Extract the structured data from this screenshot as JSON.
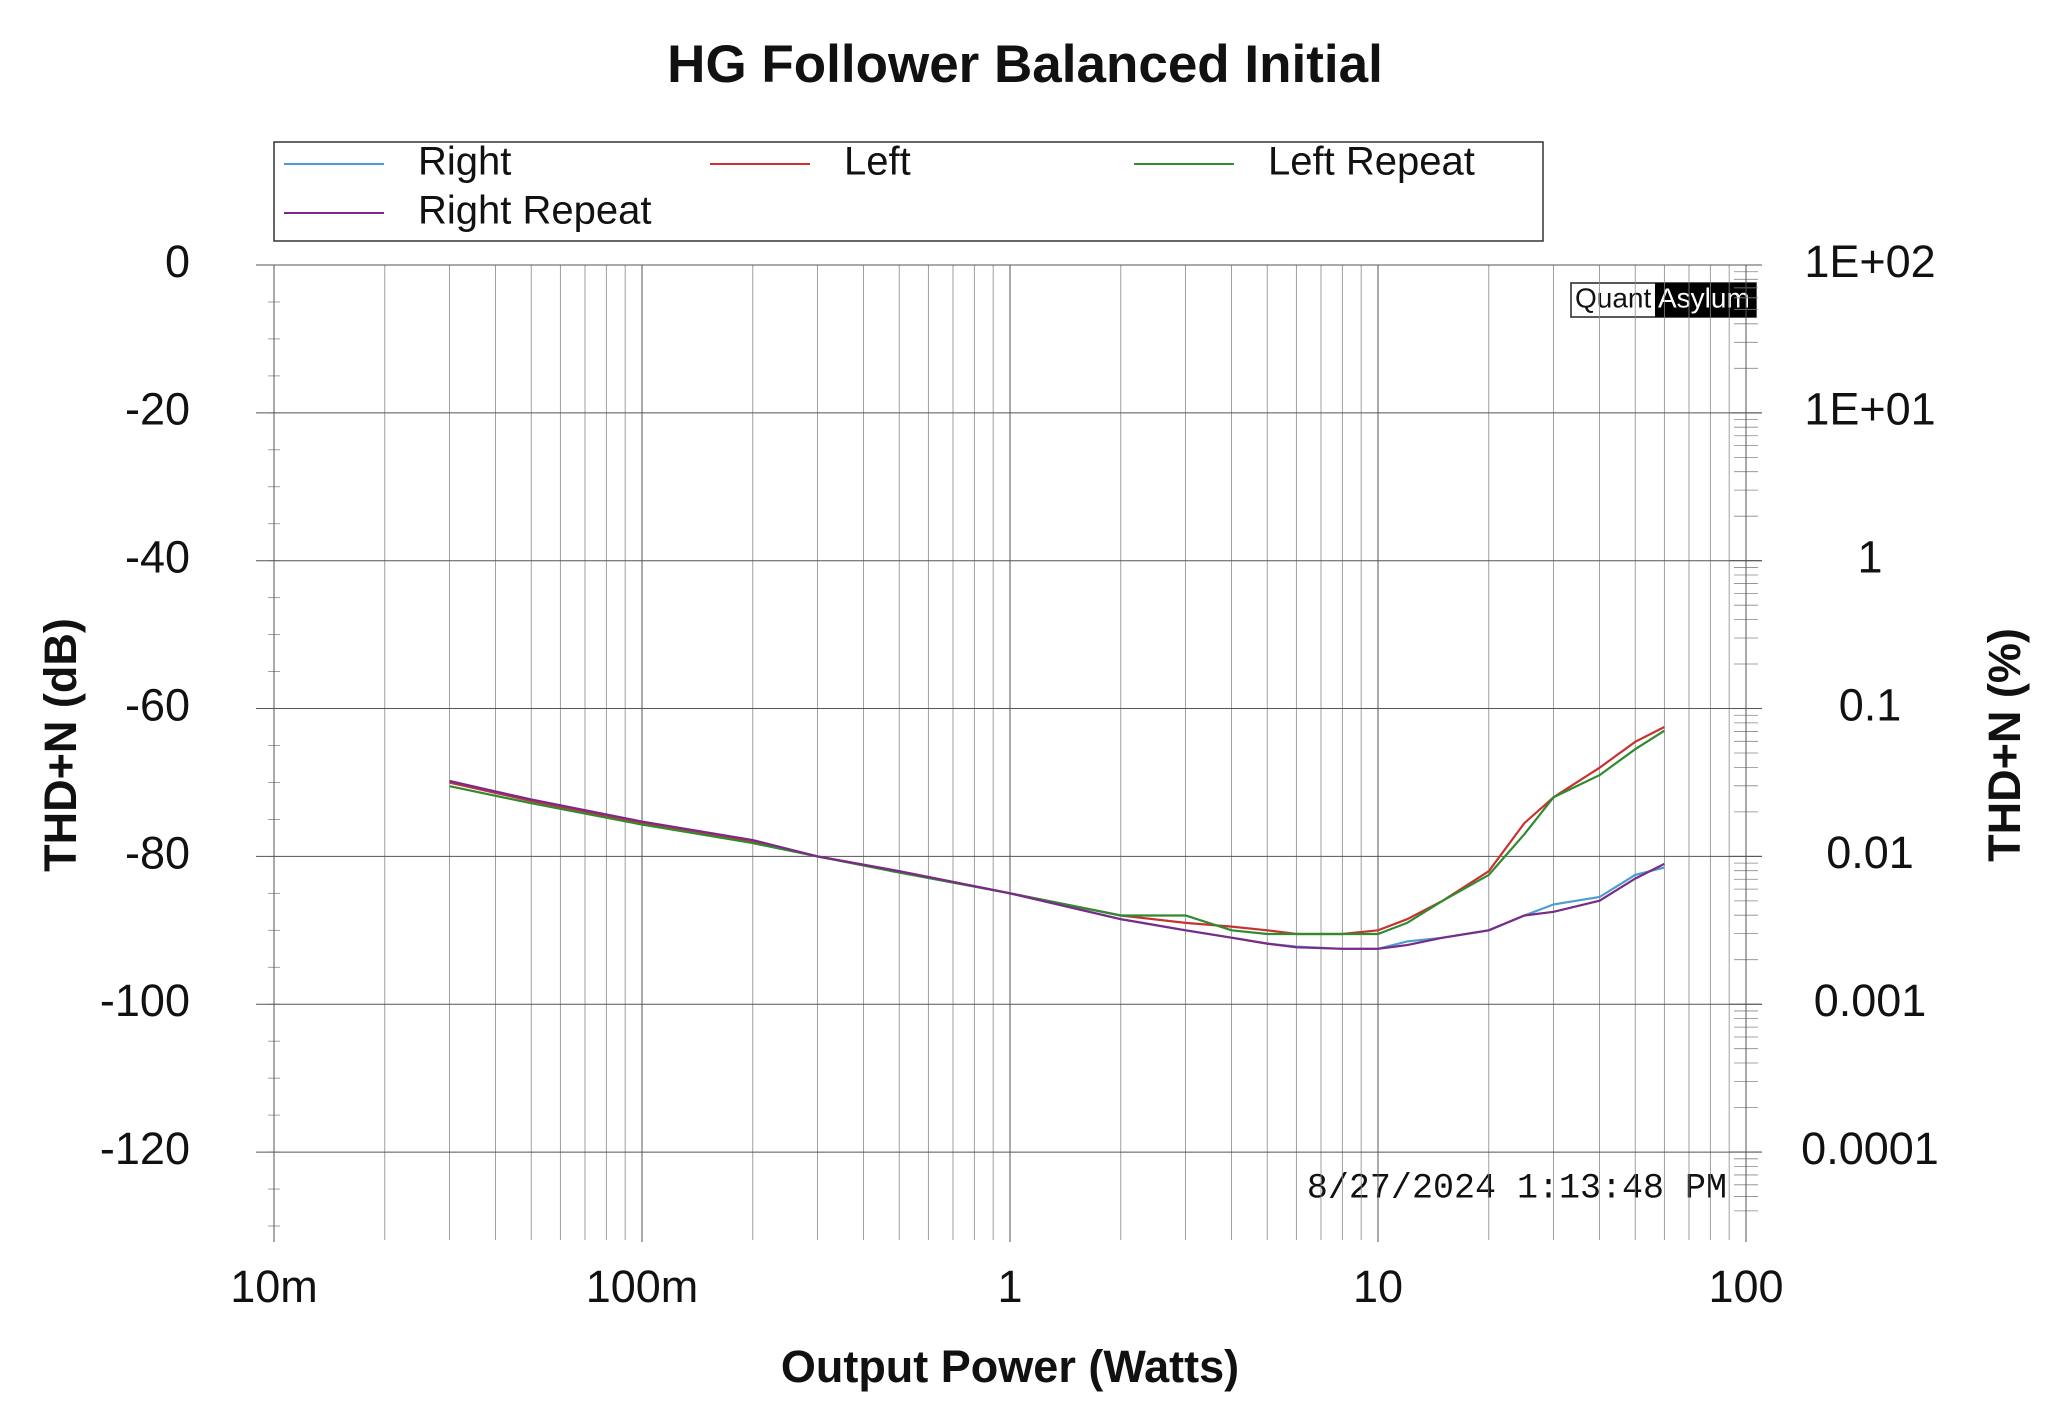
{
  "chart_data": {
    "type": "line",
    "title": "HG Follower Balanced Initial",
    "xlabel": "Output Power (Watts)",
    "ylabel": "THD+N (dB)",
    "y2label": "THD+N (%)",
    "timestamp": "8/27/2024 1:13:48 PM",
    "logo": [
      "Quant",
      "Asylum"
    ],
    "xscale": "log",
    "y2scale": "log",
    "grid": true,
    "legend": "top",
    "xlim": [
      0.01,
      100
    ],
    "xticks": [
      {
        "value": 0.01,
        "label": "10m"
      },
      {
        "value": 0.1,
        "label": "100m"
      },
      1,
      10,
      100
    ],
    "ylim": [
      -130,
      0
    ],
    "yticks": [
      0,
      -20,
      -40,
      -60,
      -80,
      -100,
      -120
    ],
    "y2lim": [
      3.16e-05,
      100
    ],
    "y2ticks": [
      {
        "value": 100,
        "label": "1E+02"
      },
      {
        "value": 10,
        "label": "1E+01"
      },
      1,
      0.1,
      0.01,
      0.001,
      0.0001
    ],
    "x": [
      0.03,
      0.05,
      0.1,
      0.2,
      0.3,
      0.5,
      1,
      2,
      3,
      4,
      5,
      6,
      8,
      10,
      12,
      15,
      20,
      25,
      30,
      40,
      50,
      60
    ],
    "series": [
      {
        "name": "Right",
        "color": "#4a9fd0",
        "values": [
          -70,
          -72.5,
          -75.5,
          -78,
          -80,
          -82,
          -85,
          -88.5,
          -90,
          -91,
          -91.8,
          -92.2,
          -92.5,
          -92.5,
          -91.5,
          -91,
          -90,
          -88,
          -86.5,
          -85.5,
          -82.5,
          -81.5
        ]
      },
      {
        "name": "Left",
        "color": "#c83232",
        "values": [
          -70,
          -72.5,
          -75.5,
          -78,
          -80,
          -82,
          -85,
          -88,
          -89,
          -89.5,
          -90,
          -90.5,
          -90.5,
          -90,
          -88.5,
          -86,
          -82,
          -75.5,
          -72,
          -68,
          -64.5,
          -62.5
        ]
      },
      {
        "name": "Left Repeat",
        "color": "#2e8b2e",
        "values": [
          -70.5,
          -72.8,
          -75.7,
          -78.2,
          -80,
          -82.2,
          -85,
          -88,
          -88,
          -90,
          -90.5,
          -90.5,
          -90.5,
          -90.5,
          -89,
          -86,
          -82.5,
          -77,
          -72,
          -69,
          -65.5,
          -63
        ]
      },
      {
        "name": "Right Repeat",
        "color": "#7b2a8a",
        "values": [
          -69.8,
          -72.3,
          -75.3,
          -77.8,
          -80,
          -82,
          -85,
          -88.5,
          -90,
          -91,
          -91.8,
          -92.3,
          -92.5,
          -92.5,
          -92,
          -91,
          -90,
          -88,
          -87.5,
          -86,
          -83,
          -81
        ]
      }
    ]
  }
}
